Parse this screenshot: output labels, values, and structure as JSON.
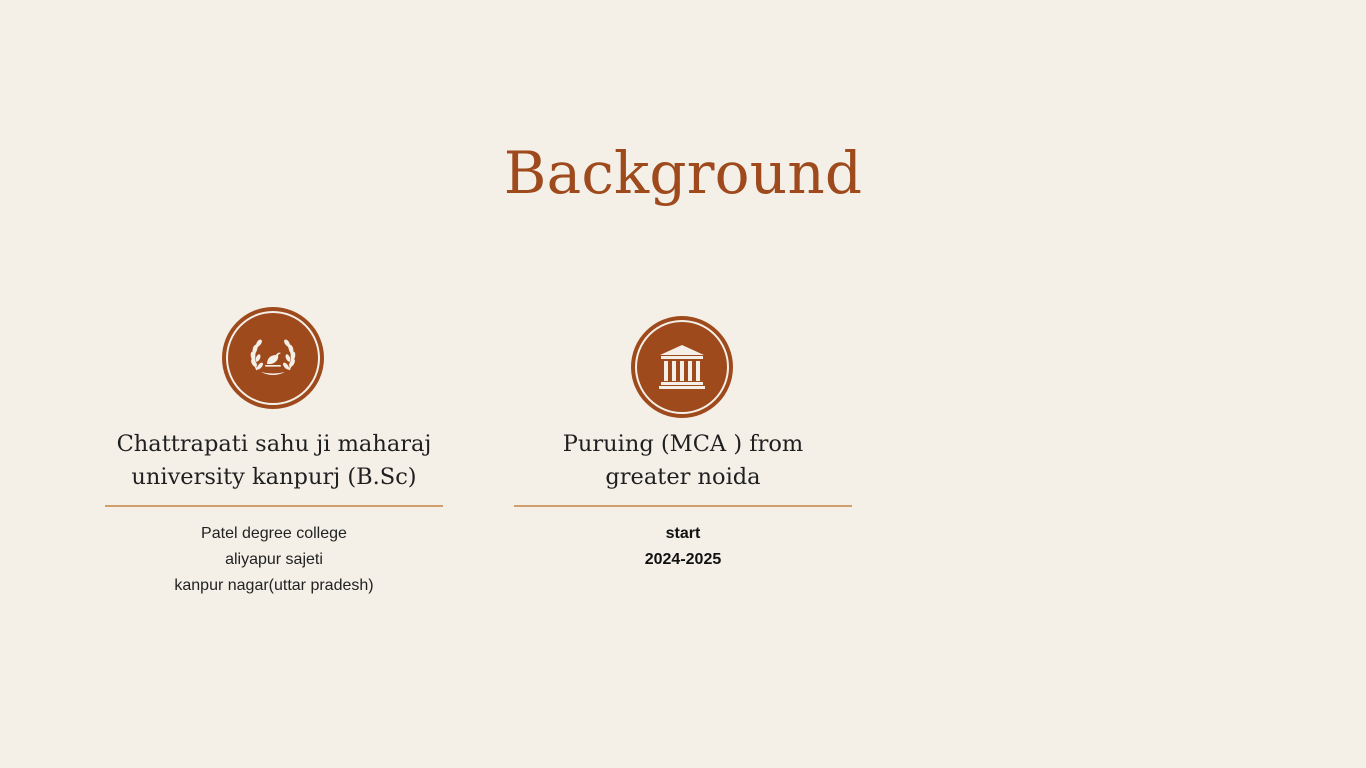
{
  "slide": {
    "title": "Background"
  },
  "cards": [
    {
      "icon": "laurel-bird-icon",
      "heading_line1": "Chattrapati sahu ji maharaj",
      "heading_line2": "university kanpurj (B.Sc)",
      "details": [
        "Patel degree college",
        "aliyapur sajeti",
        "kanpur nagar(uttar pradesh)"
      ]
    },
    {
      "icon": "institution-building-icon",
      "heading_line1": "Puruing (MCA ) from",
      "heading_line2": "greater noida",
      "details": [
        "start",
        "2024-2025"
      ]
    }
  ],
  "colors": {
    "background": "#f4f0e8",
    "accent": "#9e4a1c",
    "rule": "#cf9f6c",
    "text": "#1f1f1f"
  }
}
